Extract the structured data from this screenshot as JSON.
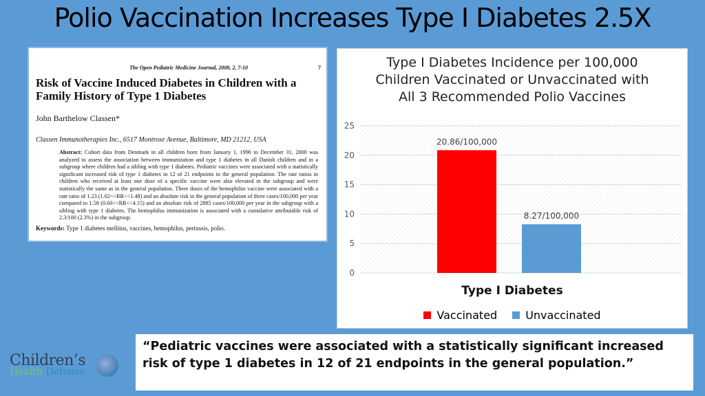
{
  "title": "Polio Vaccination Increases Type I Diabetes 2.5X",
  "paper": {
    "journal": "The Open Pediatric Medicine Journal, 2008, 2, 7-10",
    "page": "7",
    "title": "Risk of Vaccine Induced Diabetes in Children with a Family History of Type 1 Diabetes",
    "author": "John Barthelow Classen*",
    "affiliation": "Classen Immunotherapies Inc., 6517 Montrose Avenue, Baltimore, MD 21212, USA",
    "abstract_label": "Abstract:",
    "abstract": "Cohort data from Denmark in all children born from January 1, 1990 to December 31, 2000 was analyzed to assess the association between immunization and type 1 diabetes in all Danish children and in a subgroup where children had a sibling with type 1 diabetes. Pediatric vaccines were associated with a statistically significant increased risk of type 1 diabetes in 12 of 21 endpoints in the general population. The rate ratios in children who received at least one dose of a specific vaccine were also elevated in the subgroup and were statistically the same as in the general population. Three doses of the hemophilus vaccine were associated with a rate ratio of 1.23 (1.02<<RR<<1.48) and an absolute risk in the general population of three cases/100,000 per year compared to 1.58 (0.60<<RR<<4.15) and an absolute risk of 2885 cases/100,000 per year in the subgroup with a sibling with type 1 diabetes. The hemophilus immunization is associated with a cumulative attributable risk of 2.3/100 (2.3%) in the subgroup.",
    "keywords_label": "Keywords:",
    "keywords": "Type 1 diabetes mellitus, vaccines, hemophilus, pertussis, polio."
  },
  "chart_data": {
    "type": "bar",
    "title": "Type I Diabetes Incidence per 100,000 Children Vaccinated or Unvaccinated with All 3 Recommended Polio Vaccines",
    "title_lines": [
      "Type I Diabetes Incidence per 100,000",
      "Children Vaccinated or Unvaccinated with",
      "All 3 Recommended Polio Vaccines"
    ],
    "xlabel": "Type I Diabetes",
    "ylim": [
      0,
      25
    ],
    "yticks": [
      0,
      5,
      10,
      15,
      20,
      25
    ],
    "grid": true,
    "legend": "bottom",
    "series": [
      {
        "name": "Vaccinated",
        "value": 20.86,
        "label": "20.86/100,000",
        "color": "#ff0000"
      },
      {
        "name": "Unvaccinated",
        "value": 8.27,
        "label": "8.27/100,000",
        "color": "#5b9bd5"
      }
    ]
  },
  "quote": "“Pediatric vaccines were associated with a statistically significant increased risk of type 1 diabetes in 12 of 21 endpoints in the general population.”",
  "logo": {
    "line1": "Children’s",
    "line2a": "Health",
    "line2b": "Defense"
  }
}
